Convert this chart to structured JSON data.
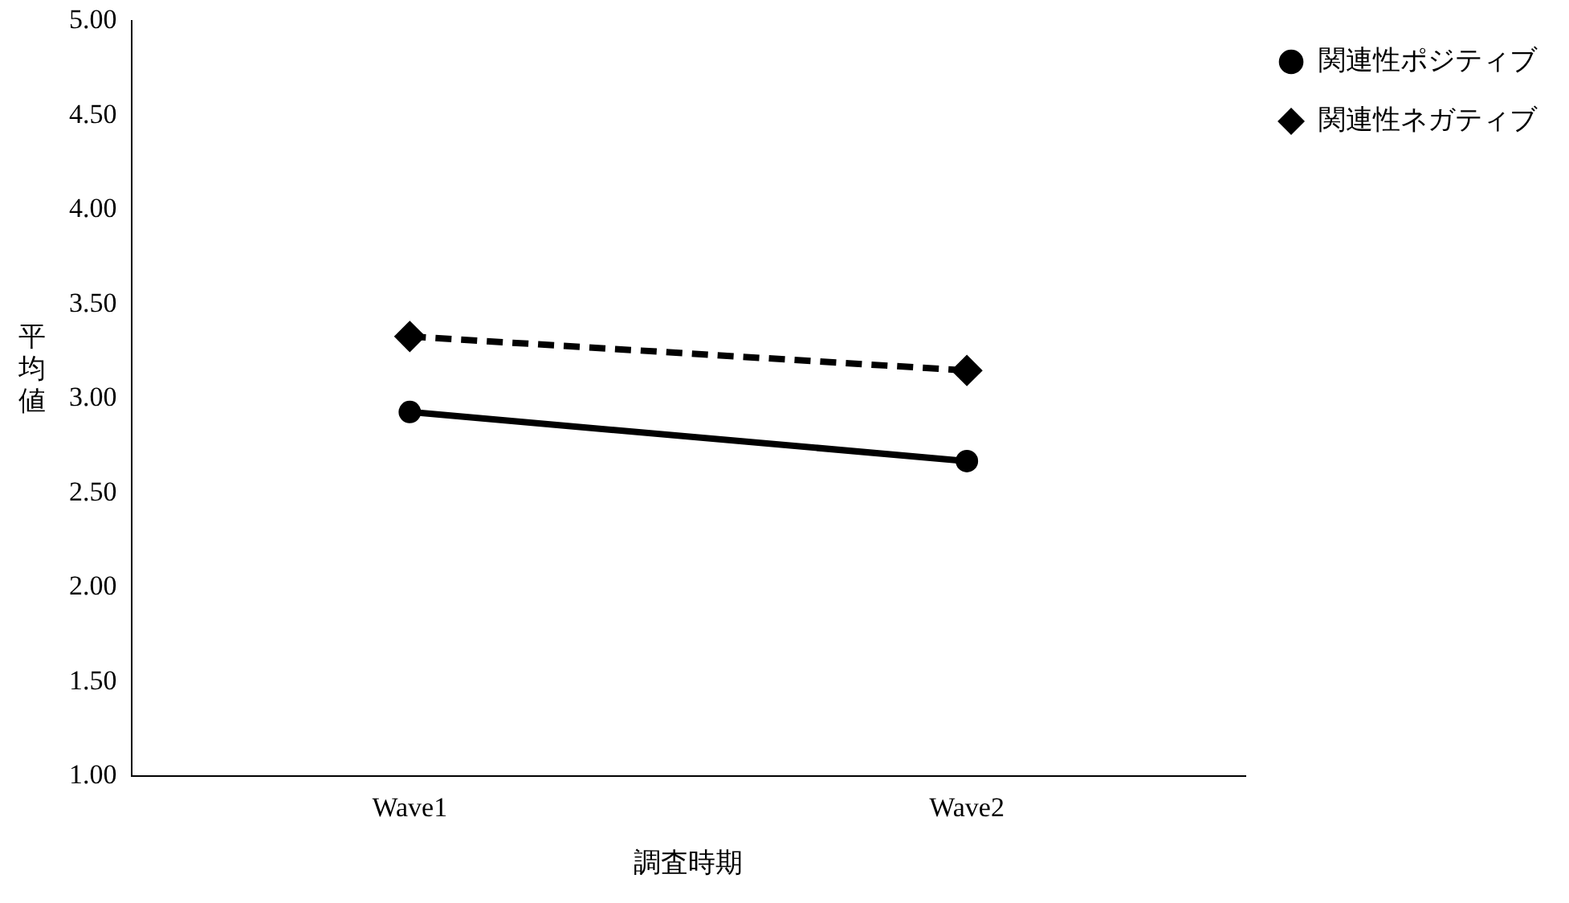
{
  "chart_data": {
    "type": "line",
    "xlabel": "調査時期",
    "ylabel": "平均値",
    "categories": [
      "Wave1",
      "Wave2"
    ],
    "series": [
      {
        "name": "関連性ポジティブ",
        "color": "#000000",
        "values": [
          2.93,
          2.67
        ],
        "marker": "circle",
        "line_style": "solid"
      },
      {
        "name": "関連性ネガティブ",
        "color": "#000000",
        "values": [
          3.33,
          3.15
        ],
        "marker": "diamond",
        "line_style": "dashed"
      }
    ],
    "ylim": [
      1,
      5
    ],
    "yticks": [
      {
        "value": 1,
        "label": "1.00"
      },
      {
        "value": 1.5,
        "label": "1.50"
      },
      {
        "value": 2,
        "label": "2.00"
      },
      {
        "value": 2.5,
        "label": "2.50"
      },
      {
        "value": 3,
        "label": "3.00"
      },
      {
        "value": 3.5,
        "label": "3.50"
      },
      {
        "value": 4,
        "label": "4.00"
      },
      {
        "value": 4.5,
        "label": "4.50"
      },
      {
        "value": 5,
        "label": "5.00"
      }
    ],
    "grid": false,
    "legend": "top right"
  }
}
